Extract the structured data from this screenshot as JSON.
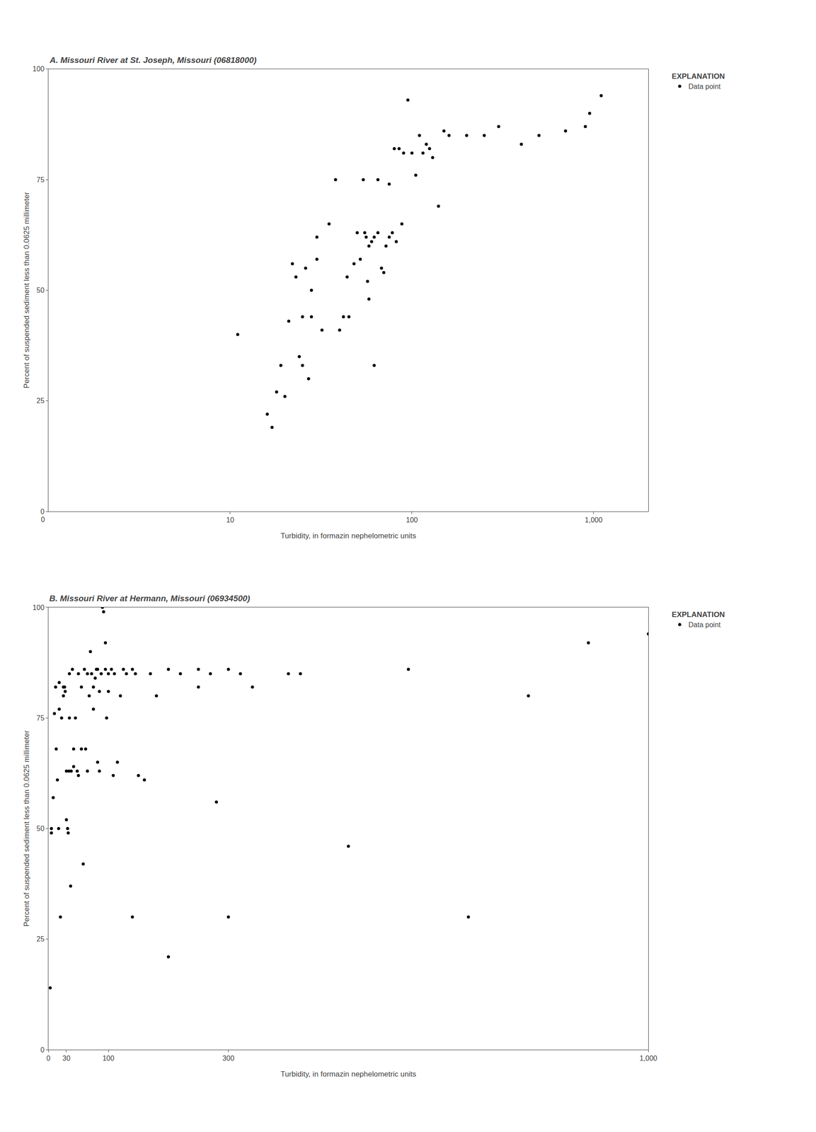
{
  "chart_data": [
    {
      "type": "scatter",
      "title": "A. Missouri River at St. Joseph, Missouri (06818000)",
      "xlabel": "Turbidity, in formazin nephelometric units",
      "ylabel": "Percent of suspended sediment less than 0.0625 millimeter",
      "log": "x",
      "xlim": [
        1,
        2000
      ],
      "xticks": [
        10,
        100,
        {
          "value": 1000,
          "label": "1,000"
        }
      ],
      "ylim": [
        0,
        100
      ],
      "yticks": [
        0,
        25,
        50,
        75,
        100
      ],
      "grid": false,
      "legend": "right",
      "legend_title": "EXPLANATION",
      "annotations": [
        {
          "text": "0"
        }
      ],
      "series": [
        {
          "name": "Data point",
          "color": "black",
          "marker": "circle",
          "x": [
            11,
            16,
            17,
            18,
            19,
            20,
            21,
            22,
            23,
            24,
            25,
            25,
            26,
            27,
            28,
            28,
            30,
            30,
            32,
            35,
            38,
            40,
            42,
            44,
            45,
            48,
            50,
            52,
            54,
            55,
            56,
            57,
            58,
            58,
            60,
            62,
            62,
            65,
            65,
            68,
            70,
            72,
            75,
            75,
            78,
            80,
            82,
            85,
            88,
            90,
            95,
            100,
            105,
            110,
            115,
            120,
            125,
            130,
            140,
            150,
            160,
            200,
            250,
            300,
            400,
            500,
            700,
            900,
            950,
            1100
          ],
          "values": [
            40,
            22,
            19,
            27,
            33,
            26,
            43,
            56,
            53,
            35,
            44,
            33,
            55,
            30,
            50,
            44,
            62,
            57,
            41,
            65,
            75,
            41,
            44,
            53,
            44,
            56,
            63,
            57,
            75,
            63,
            62,
            52,
            60,
            48,
            61,
            62,
            33,
            63,
            75,
            55,
            54,
            60,
            62,
            74,
            63,
            82,
            61,
            82,
            65,
            81,
            93,
            81,
            76,
            85,
            81,
            83,
            82,
            80,
            69,
            86,
            85,
            85,
            85,
            87,
            83,
            85,
            86,
            87,
            90,
            94
          ]
        }
      ]
    },
    {
      "type": "scatter",
      "title": "B. Missouri River at Hermann, Missouri (06934500)",
      "xlabel": "Turbidity, in formazin nephelometric units",
      "ylabel": "Percent of suspended sediment less than 0.0625 millimeter",
      "xlim": [
        0,
        1000
      ],
      "xticks": [
        0,
        30,
        100,
        300,
        {
          "value": 1000,
          "label": "1,000"
        }
      ],
      "ylim": [
        0,
        100
      ],
      "yticks": [
        0,
        25,
        50,
        75,
        100
      ],
      "grid": false,
      "legend": "right",
      "legend_title": "EXPLANATION",
      "series": [
        {
          "name": "Data point",
          "color": "black",
          "marker": "circle",
          "x": [
            3,
            5,
            5,
            8,
            10,
            12,
            13,
            15,
            17,
            18,
            18,
            20,
            22,
            25,
            25,
            27,
            28,
            30,
            30,
            32,
            33,
            34,
            35,
            35,
            37,
            38,
            40,
            42,
            42,
            45,
            48,
            50,
            50,
            55,
            55,
            58,
            60,
            62,
            65,
            65,
            68,
            70,
            72,
            75,
            75,
            78,
            80,
            82,
            82,
            85,
            85,
            88,
            90,
            92,
            95,
            95,
            97,
            100,
            100,
            105,
            108,
            110,
            115,
            120,
            125,
            130,
            140,
            140,
            145,
            150,
            160,
            170,
            180,
            200,
            200,
            220,
            250,
            250,
            270,
            280,
            300,
            300,
            320,
            340,
            400,
            420,
            500,
            600,
            700,
            800,
            900,
            1000
          ],
          "values": [
            14,
            50,
            49,
            57,
            76,
            82,
            68,
            61,
            50,
            83,
            77,
            30,
            75,
            80,
            82,
            82,
            81,
            52,
            63,
            50,
            49,
            63,
            85,
            75,
            37,
            63,
            86,
            64,
            68,
            75,
            63,
            62,
            85,
            82,
            68,
            42,
            86,
            68,
            63,
            85,
            80,
            90,
            85,
            82,
            77,
            84,
            86,
            86,
            65,
            63,
            81,
            85,
            100,
            99,
            86,
            92,
            75,
            85,
            81,
            86,
            62,
            85,
            65,
            80,
            86,
            85,
            86,
            30,
            85,
            62,
            61,
            85,
            80,
            21,
            86,
            85,
            86,
            82,
            85,
            56,
            86,
            30,
            85,
            82,
            85,
            85,
            46,
            86,
            30,
            80,
            92,
            94
          ]
        }
      ]
    }
  ]
}
